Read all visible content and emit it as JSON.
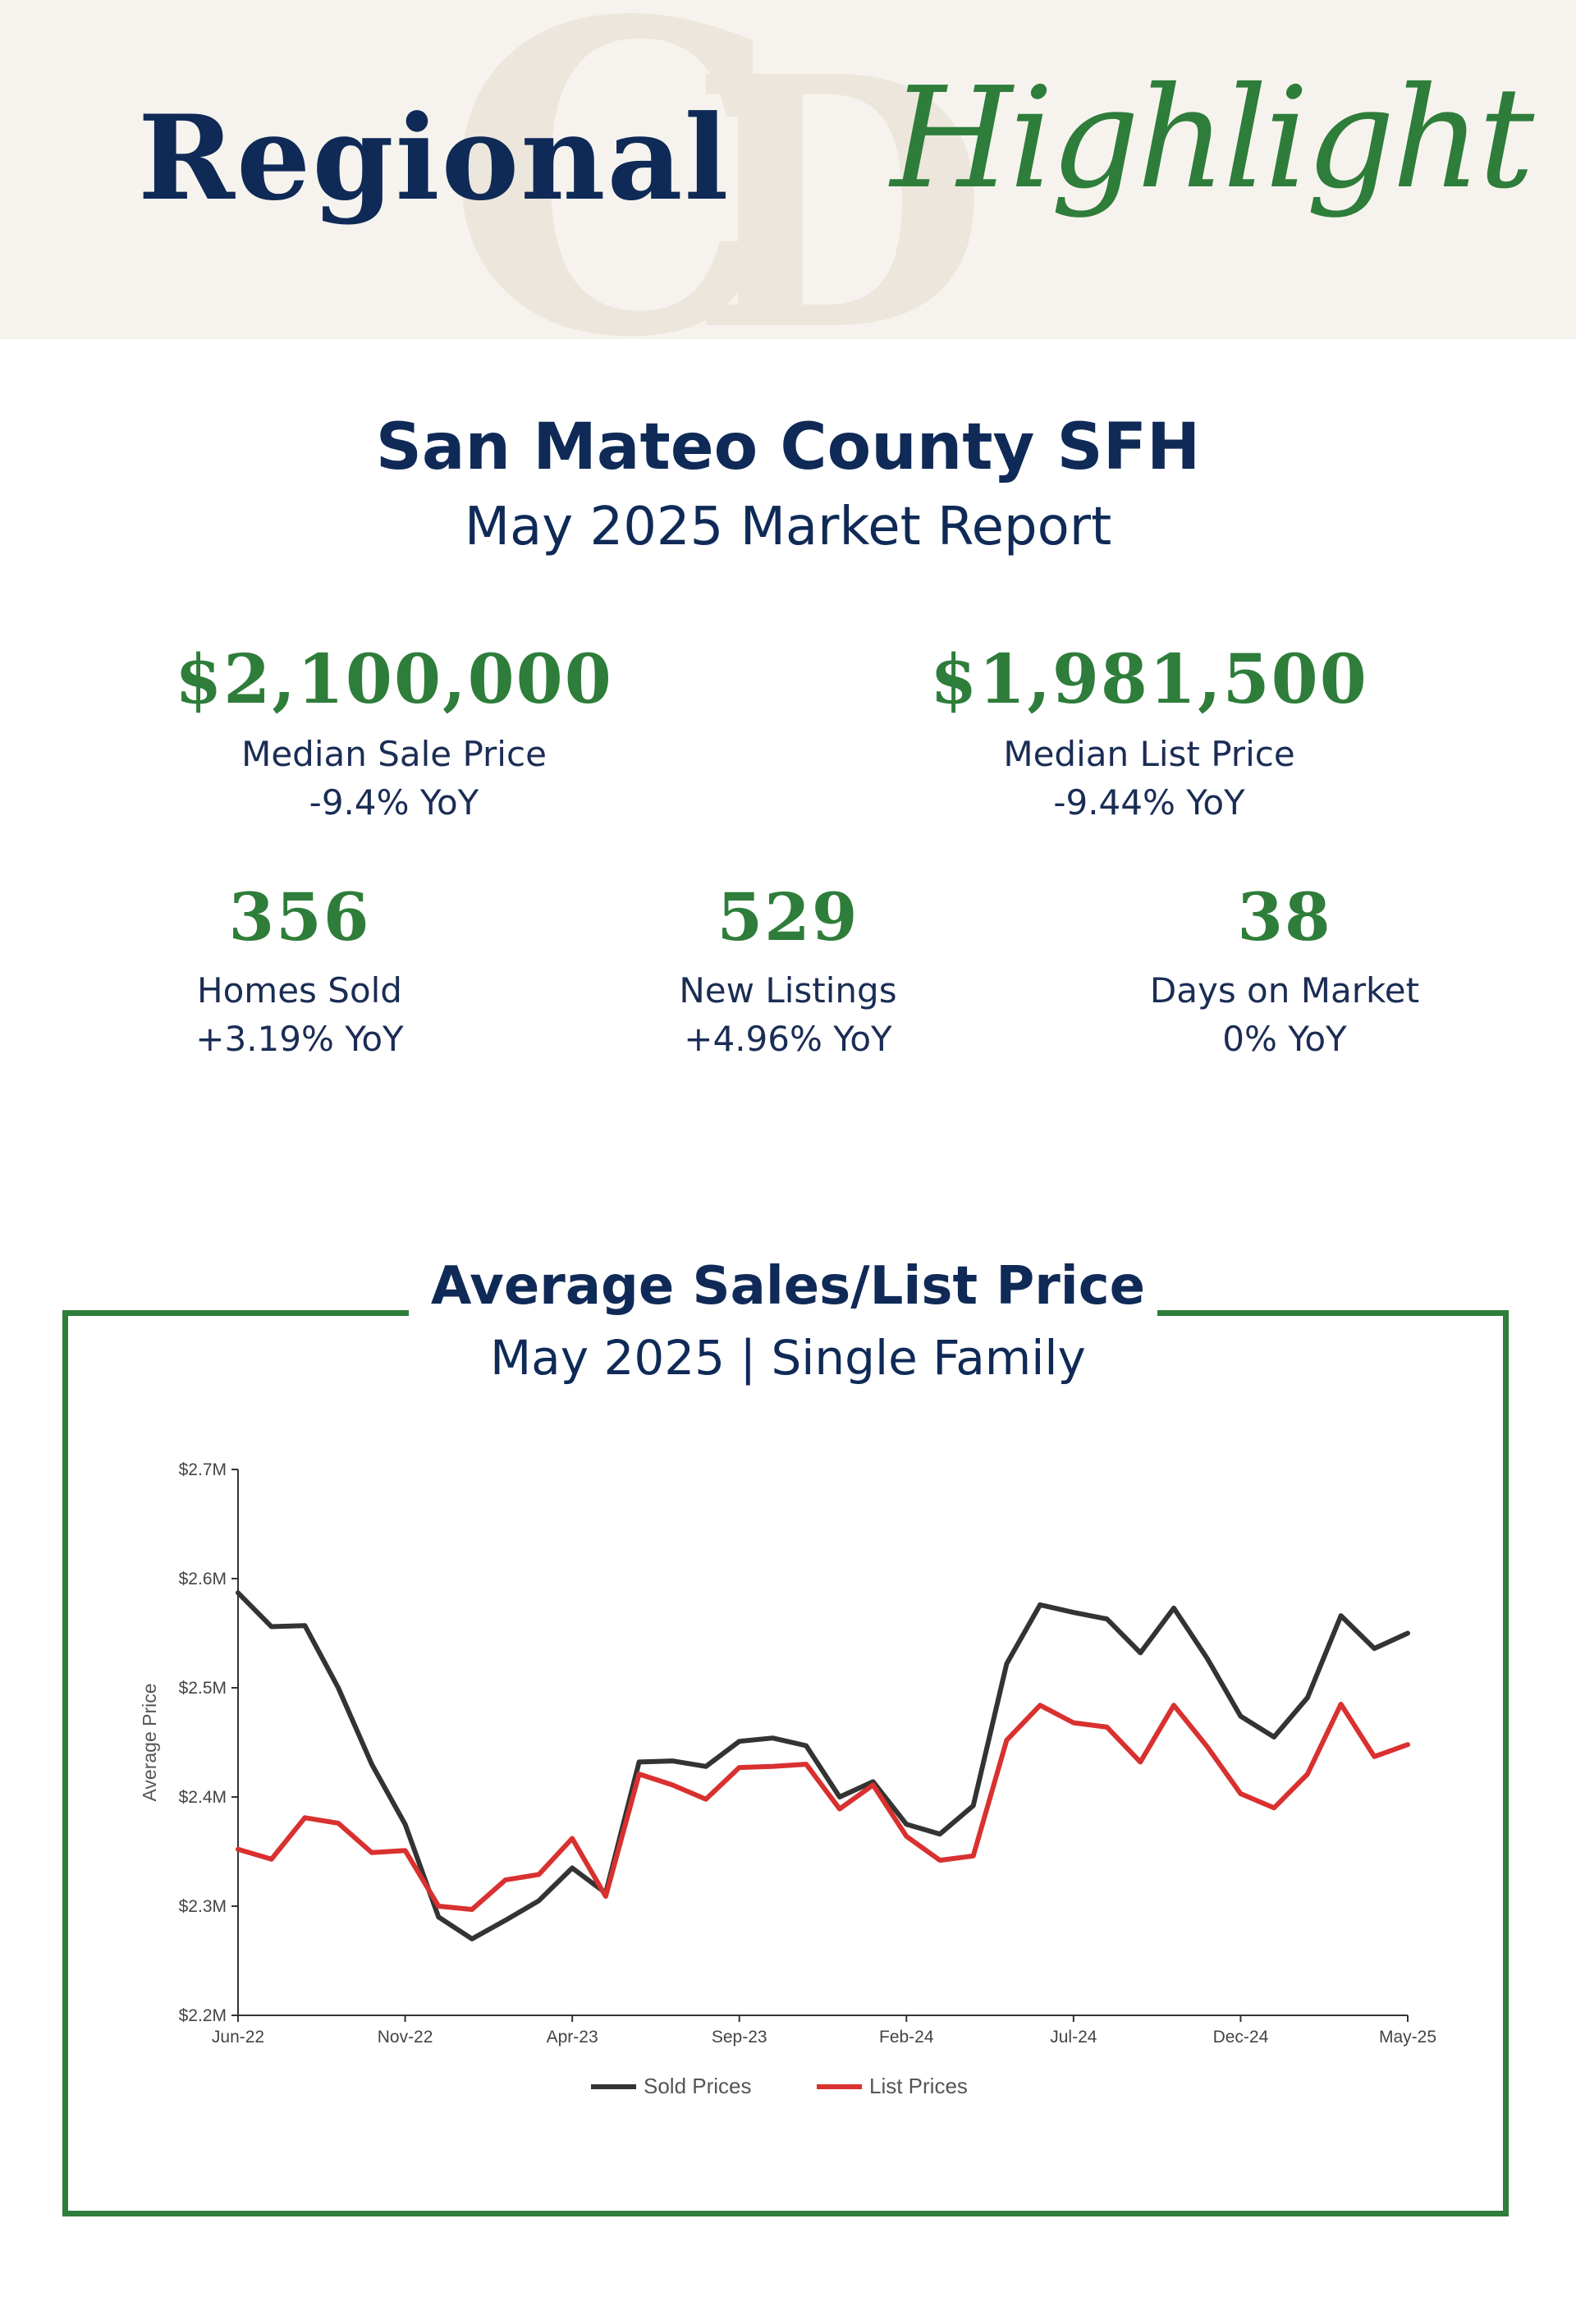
{
  "header": {
    "title_word_1": "Regional",
    "title_word_2": "Highlight",
    "colors": {
      "navy": "#0f2a57",
      "green": "#2e7d3a",
      "banner_bg": "#f6f3ee"
    }
  },
  "report": {
    "region": "San Mateo County SFH",
    "subtitle": "May 2025 Market Report"
  },
  "stats": {
    "median_sale": {
      "value": "$2,100,000",
      "label": "Median Sale Price",
      "yoy": "-9.4% YoY"
    },
    "median_list": {
      "value": "$1,981,500",
      "label": "Median List Price",
      "yoy": "-9.44% YoY"
    },
    "homes_sold": {
      "value": "356",
      "label": "Homes Sold",
      "yoy": "+3.19% YoY"
    },
    "new_listings": {
      "value": "529",
      "label": "New Listings",
      "yoy": "+4.96% YoY"
    },
    "days_on_market": {
      "value": "38",
      "label": "Days on Market",
      "yoy": "0% YoY"
    }
  },
  "chart_section": {
    "title": "Average Sales/List Price",
    "subtitle": "May 2025 | Single Family"
  },
  "chart_data": {
    "type": "line",
    "ylabel": "Average Price",
    "xlabel": "",
    "ylim": [
      2.2,
      2.7
    ],
    "yticks": [
      2.2,
      2.3,
      2.4,
      2.5,
      2.6,
      2.7
    ],
    "ytick_labels": [
      "$2.2M",
      "$2.3M",
      "$2.4M",
      "$2.5M",
      "$2.6M",
      "$2.7M"
    ],
    "x": [
      "Jun-22",
      "Jul-22",
      "Aug-22",
      "Sep-22",
      "Oct-22",
      "Nov-22",
      "Dec-22",
      "Jan-23",
      "Feb-23",
      "Mar-23",
      "Apr-23",
      "May-23",
      "Jun-23",
      "Jul-23",
      "Aug-23",
      "Sep-23",
      "Oct-23",
      "Nov-23",
      "Dec-23",
      "Jan-24",
      "Feb-24",
      "Mar-24",
      "Apr-24",
      "May-24",
      "Jun-24",
      "Jul-24",
      "Aug-24",
      "Sep-24",
      "Oct-24",
      "Nov-24",
      "Dec-24",
      "Jan-25",
      "Feb-25",
      "Mar-25",
      "Apr-25",
      "May-25"
    ],
    "xtick_labels": [
      {
        "index": 0,
        "label": "Jun-22"
      },
      {
        "index": 5,
        "label": "Nov-22"
      },
      {
        "index": 10,
        "label": "Apr-23"
      },
      {
        "index": 15,
        "label": "Sep-23"
      },
      {
        "index": 20,
        "label": "Feb-24"
      },
      {
        "index": 25,
        "label": "Jul-24"
      },
      {
        "index": 30,
        "label": "Dec-24"
      },
      {
        "index": 35,
        "label": "May-25"
      }
    ],
    "series": [
      {
        "name": "Sold Prices",
        "color": "#333333",
        "values": [
          2.587,
          2.556,
          2.557,
          2.5,
          2.43,
          2.375,
          2.29,
          2.27,
          2.287,
          2.305,
          2.335,
          2.312,
          2.432,
          2.433,
          2.428,
          2.451,
          2.454,
          2.447,
          2.4,
          2.414,
          2.375,
          2.366,
          2.392,
          2.522,
          2.576,
          2.569,
          2.563,
          2.532,
          2.573,
          2.527,
          2.474,
          2.455,
          2.491,
          2.566,
          2.536,
          2.55
        ]
      },
      {
        "name": "List Prices",
        "color": "#d93030",
        "values": [
          2.352,
          2.343,
          2.381,
          2.376,
          2.349,
          2.351,
          2.3,
          2.297,
          2.324,
          2.329,
          2.362,
          2.309,
          2.421,
          2.411,
          2.398,
          2.427,
          2.428,
          2.43,
          2.389,
          2.411,
          2.364,
          2.342,
          2.346,
          2.452,
          2.484,
          2.468,
          2.464,
          2.432,
          2.484,
          2.446,
          2.403,
          2.39,
          2.421,
          2.485,
          2.437,
          2.448
        ]
      }
    ],
    "legend_position": "bottom-center"
  }
}
